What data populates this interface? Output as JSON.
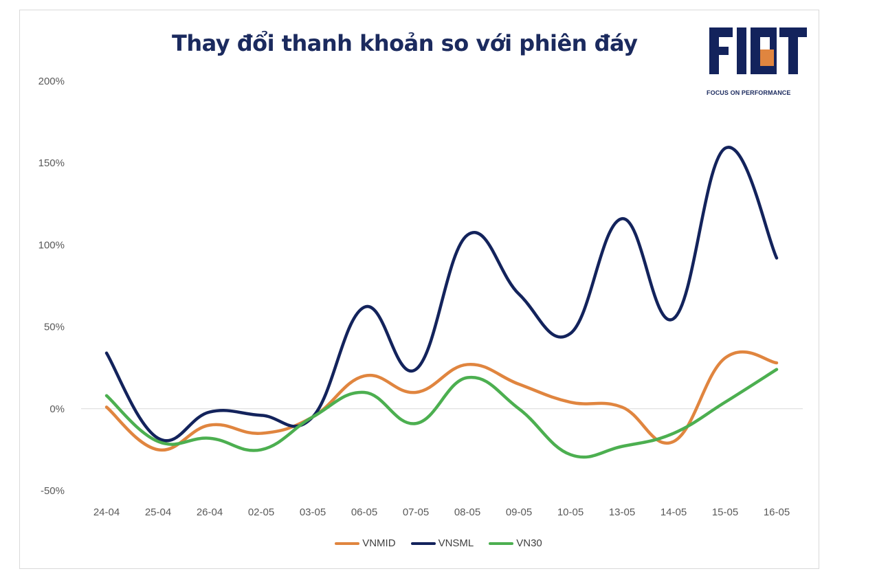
{
  "chart_data": {
    "type": "line",
    "title": "Thay đổi thanh khoản so với  phiên đáy",
    "categories": [
      "24-04",
      "25-04",
      "26-04",
      "02-05",
      "03-05",
      "06-05",
      "07-05",
      "08-05",
      "09-05",
      "10-05",
      "13-05",
      "14-05",
      "15-05",
      "16-05"
    ],
    "y_ticks": [
      "200%",
      "150%",
      "100%",
      "50%",
      "0%",
      "-50%"
    ],
    "ylim": [
      -50,
      200
    ],
    "y_tick_values": [
      200,
      150,
      100,
      50,
      0,
      -50
    ],
    "grid": false,
    "legend_position": "bottom",
    "series": [
      {
        "name": "VNMID",
        "color": "#e0853f",
        "values": [
          1,
          -25,
          -10,
          -15,
          -5,
          20,
          10,
          27,
          15,
          4,
          1,
          -20,
          31,
          28
        ]
      },
      {
        "name": "VNSML",
        "color": "#13235c",
        "values": [
          34,
          -18,
          -2,
          -4,
          -5,
          62,
          24,
          106,
          70,
          46,
          116,
          55,
          159,
          92
        ]
      },
      {
        "name": "VN30",
        "color": "#4caf50",
        "values": [
          8,
          -20,
          -18,
          -25,
          -5,
          10,
          -9,
          19,
          0,
          -28,
          -23,
          -15,
          4,
          24
        ]
      }
    ]
  },
  "logo": {
    "text": "FIDT",
    "tagline": "FOCUS ON PERFORMANCE"
  }
}
